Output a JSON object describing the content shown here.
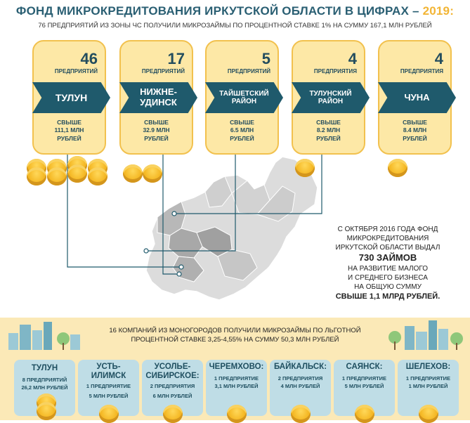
{
  "title": "ФОНД МИКРОКРЕДИТОВАНИЯ ИРКУТСКОЙ ОБЛАСТИ В ЦИФРАХ –",
  "title_year": "2019:",
  "subtitle": "76 ПРЕДПРИЯТИЙ ИЗ ЗОНЫ ЧС ПОЛУЧИЛИ МИКРОЗАЙМЫ ПО ПРОЦЕНТНОЙ СТАВКЕ 1% НА СУММУ 167,1 МЛН РУБЛЕЙ",
  "colors": {
    "dark_teal": "#1f5a6c",
    "title_teal": "#2a5f73",
    "gold": "#f2b535",
    "card_fill": "#fde8a6",
    "map_gray": "#d6d6d6",
    "band": "#fbe9b7",
    "city_box": "#bfdde6"
  },
  "cards": [
    {
      "num": "46",
      "label": "ПРЕДПРИЯТИЙ",
      "name": "ТУЛУН",
      "amount": "СВЫШЕ\n111,1 МЛН\nРУБЛЕЙ"
    },
    {
      "num": "17",
      "label": "ПРЕДПРИЯТИЙ",
      "name": "НИЖНЕ-\nУДИНСК",
      "amount": "СВЫШЕ\n32.9 МЛН\nРУБЛЕЙ"
    },
    {
      "num": "5",
      "label": "ПРЕДПРИЯТИЙ",
      "name": "ТАЙШЕТСКИЙ\nРАЙОН",
      "amount": "СВЫШЕ\n6.5 МЛН\nРУБЛЕЙ"
    },
    {
      "num": "4",
      "label": "ПРЕДПРИЯТИЯ",
      "name": "ТУЛУНСКИЙ\nРАЙОН",
      "amount": "СВЫШЕ\n8.2 МЛН\nРУБЛЕЙ"
    },
    {
      "num": "4",
      "label": "ПРЕДПРИЯТИЯ",
      "name": "ЧУНА",
      "amount": "СВЫШЕ\n8.4 МЛН\nРУБЛЕЙ"
    }
  ],
  "info": {
    "line1": "С ОКТЯБРЯ 2016 ГОДА ФОНД",
    "line2": "МИКРОКРЕДИТОВАНИЯ",
    "line3": "ИРКУТСКОЙ ОБЛАСТИ ВЫДАЛ",
    "loans": "730 ЗАЙМОВ",
    "line5": "НА РАЗВИТИЕ МАЛОГО",
    "line6": "И СРЕДНЕГО БИЗНЕСА",
    "line7": "НА ОБЩУЮ СУММУ",
    "total": "СВЫШЕ 1,1 МЛРД РУБЛЕЙ."
  },
  "band_text": "16 КОМПАНИЙ ИЗ МОНОГОРОДОВ ПОЛУЧИЛИ МИКРОЗАЙМЫ ПО ЛЬГОТНОЙ\nПРОЦЕНТНОЙ СТАВКЕ 3,25-4,55% НА СУММУ 50,3 МЛН РУБЛЕЙ",
  "cities": [
    {
      "name": "ТУЛУН",
      "companies": "8 ПРЕДПРИЯТИЙ",
      "sum": "26,2 МЛН РУБЛЕЙ"
    },
    {
      "name": "УСТЬ-\nИЛИМСК",
      "companies": "1 ПРЕДПРИЯТИЕ",
      "sum": "5 МЛН РУБЛЕЙ"
    },
    {
      "name": "УСОЛЬЕ-\nСИБИРСКОЕ:",
      "companies": "2 ПРЕДПРИЯТИЯ",
      "sum": "6 МЛН РУБЛЕЙ"
    },
    {
      "name": "ЧЕРЕМХОВО:",
      "companies": "1 ПРЕДПРИЯТИЕ",
      "sum": "3,1 МЛН РУБЛЕЙ"
    },
    {
      "name": "БАЙКАЛЬСК:",
      "companies": "2 ПРЕДПРИЯТИЯ",
      "sum": "4 МЛН РУБЛЕЙ"
    },
    {
      "name": "САЯНСК:",
      "companies": "1 ПРЕДПРИЯТИЕ",
      "sum": "5 МЛН РУБЛЕЙ"
    },
    {
      "name": "ШЕЛЕХОВ:",
      "companies": "1 ПРЕДПРИЯТИЕ",
      "sum": "1 МЛН РУБЛЕЙ"
    }
  ]
}
